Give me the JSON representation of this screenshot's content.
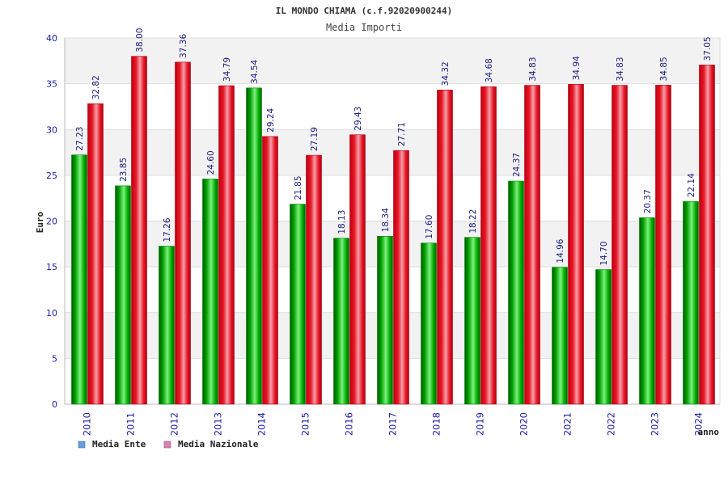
{
  "chart_data": {
    "type": "bar",
    "title": "IL MONDO CHIAMA (c.f.92020900244)",
    "subtitle": "Media Importi",
    "xlabel": "anno",
    "ylabel": "Euro",
    "ylim": [
      0,
      40
    ],
    "yticks": [
      0,
      5,
      10,
      15,
      20,
      25,
      30,
      35,
      40
    ],
    "grid": true,
    "legend_position": "bottom-left",
    "categories": [
      "2010",
      "2011",
      "2012",
      "2013",
      "2014",
      "2015",
      "2016",
      "2017",
      "2018",
      "2019",
      "2020",
      "2021",
      "2022",
      "2023",
      "2024"
    ],
    "series": [
      {
        "name": "Media Ente",
        "color": "#00b000",
        "legend_color": "#5f9fe8",
        "values": [
          27.23,
          23.85,
          17.26,
          24.6,
          34.54,
          21.85,
          18.13,
          18.34,
          17.6,
          18.22,
          24.37,
          14.96,
          14.7,
          20.37,
          22.14
        ],
        "labels": [
          "27.23",
          "23.85",
          "17.26",
          "24.60",
          "34.54",
          "21.85",
          "18.13",
          "18.34",
          "17.60",
          "18.22",
          "24.37",
          "14.96",
          "14.70",
          "20.37",
          "22.14"
        ]
      },
      {
        "name": "Media Nazionale",
        "color": "#e81020",
        "legend_color": "#e27fb0",
        "values": [
          32.82,
          38.0,
          37.36,
          34.79,
          29.24,
          27.19,
          29.43,
          27.71,
          34.32,
          34.68,
          34.83,
          34.94,
          34.83,
          34.85,
          37.05
        ],
        "labels": [
          "32.82",
          "38.00",
          "37.36",
          "34.79",
          "29.24",
          "27.19",
          "29.43",
          "27.71",
          "34.32",
          "34.68",
          "34.83",
          "34.94",
          "34.83",
          "34.85",
          "37.05"
        ]
      }
    ]
  }
}
